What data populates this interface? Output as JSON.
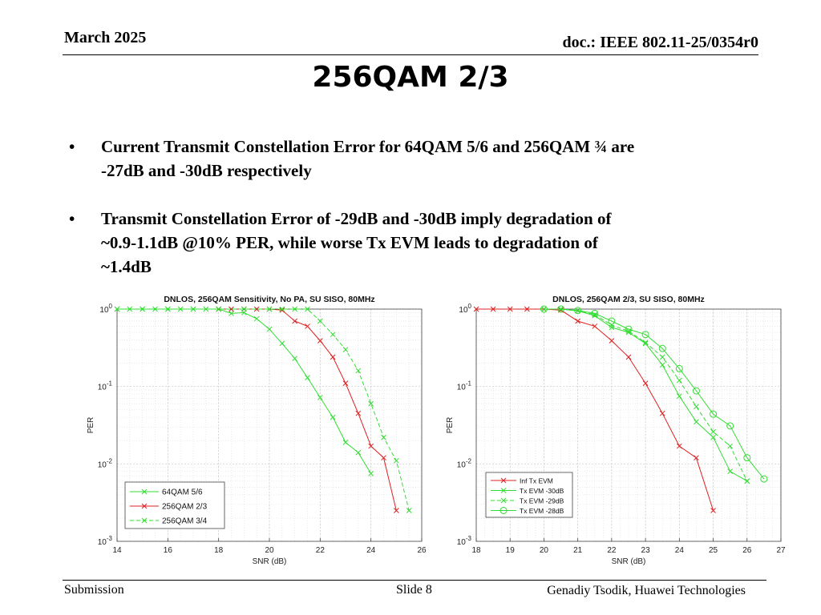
{
  "header": {
    "date": "March 2025",
    "doc": "doc.: IEEE 802.11-25/0354r0"
  },
  "slide_title": "256QAM 2/3",
  "bullets": [
    {
      "line1": "Current Transmit Constellation Error for 64QAM 5/6 and 256QAM ¾ are",
      "line2": "-27dB and -30dB respectively"
    },
    {
      "line1": "Transmit Constellation Error of -29dB and -30dB imply degradation of",
      "line2": "~0.9-1.1dB @10% PER, while worse Tx EVM leads to degradation of",
      "line3": "~1.4dB"
    }
  ],
  "bullet_glyph": "•",
  "footer": {
    "left": "Submission",
    "center": "Slide 8",
    "right": "Genadiy Tsodik, Huawei Technologies"
  },
  "chart_data": [
    {
      "type": "line",
      "title": "DNLOS, 256QAM Sensitivity, No PA, SU SISO, 80MHz",
      "xlabel": "SNR (dB)",
      "ylabel": "PER",
      "xlim": [
        14,
        26
      ],
      "ylim": [
        0.001,
        1
      ],
      "yscale": "log",
      "xticks": [
        14,
        16,
        18,
        20,
        22,
        24,
        26
      ],
      "yticks": [
        {
          "base": "10",
          "exp": "0"
        },
        {
          "base": "10",
          "exp": "-1"
        },
        {
          "base": "10",
          "exp": "-2"
        },
        {
          "base": "10",
          "exp": "-3"
        }
      ],
      "grid": true,
      "legend_position": "bottom-left",
      "series": [
        {
          "name": "64QAM 5/6",
          "color": "#33dd33",
          "dash": "solid",
          "x": [
            14,
            14.5,
            15,
            15.5,
            16,
            16.5,
            17,
            17.5,
            18,
            18.5,
            19,
            19.5,
            20,
            20.5,
            21,
            21.5,
            22,
            22.5,
            23,
            23.5,
            24
          ],
          "y": [
            1,
            1,
            1,
            1,
            1,
            1,
            1,
            1,
            1,
            0.88,
            0.9,
            0.75,
            0.55,
            0.36,
            0.23,
            0.13,
            0.072,
            0.04,
            0.019,
            0.014,
            0.0075
          ]
        },
        {
          "name": "256QAM 2/3",
          "color": "#e02020",
          "dash": "solid",
          "x": [
            18,
            18.5,
            19,
            19.5,
            20,
            20.5,
            21,
            21.5,
            22,
            22.5,
            23,
            23.5,
            24,
            24.5,
            25
          ],
          "y": [
            1,
            1,
            1,
            1,
            1,
            0.97,
            0.7,
            0.6,
            0.39,
            0.24,
            0.11,
            0.045,
            0.017,
            0.012,
            0.0025
          ]
        },
        {
          "name": "256QAM 3/4",
          "color": "#33dd33",
          "dash": "dashed",
          "x": [
            14,
            15,
            16,
            17,
            18,
            19,
            20,
            20.5,
            21,
            21.5,
            22,
            22.5,
            23,
            23.5,
            24,
            24.5,
            25,
            25.5
          ],
          "y": [
            1,
            1,
            1,
            1,
            1,
            1,
            1,
            1,
            1,
            1,
            0.7,
            0.47,
            0.3,
            0.16,
            0.06,
            0.022,
            0.011,
            0.0025
          ]
        }
      ]
    },
    {
      "type": "line",
      "title": "DNLOS, 256QAM 2/3, SU SISO, 80MHz",
      "xlabel": "SNR (dB)",
      "ylabel": "PER",
      "xlim": [
        18,
        27
      ],
      "ylim": [
        0.001,
        1
      ],
      "yscale": "log",
      "xticks": [
        18,
        19,
        20,
        21,
        22,
        23,
        24,
        25,
        26,
        27
      ],
      "yticks": [
        {
          "base": "10",
          "exp": "0"
        },
        {
          "base": "10",
          "exp": "-1"
        },
        {
          "base": "10",
          "exp": "-2"
        },
        {
          "base": "10",
          "exp": "-3"
        }
      ],
      "grid": true,
      "legend_position": "bottom-left",
      "series": [
        {
          "name": "Inf Tx EVM",
          "color": "#e02020",
          "dash": "solid",
          "marker": "x",
          "x": [
            18,
            18.5,
            19,
            19.5,
            20,
            20.5,
            21,
            21.5,
            22,
            22.5,
            23,
            23.5,
            24,
            24.5,
            25
          ],
          "y": [
            1,
            1,
            1,
            1,
            1,
            0.97,
            0.7,
            0.6,
            0.39,
            0.24,
            0.11,
            0.045,
            0.017,
            0.012,
            0.0025
          ]
        },
        {
          "name": "Tx EVM -30dB",
          "color": "#33dd33",
          "dash": "solid",
          "marker": "x",
          "x": [
            20,
            20.5,
            21,
            21.5,
            22,
            22.5,
            23,
            23.5,
            24,
            24.5,
            25,
            25.5,
            26
          ],
          "y": [
            1,
            1,
            0.95,
            0.82,
            0.58,
            0.5,
            0.36,
            0.19,
            0.075,
            0.035,
            0.022,
            0.008,
            0.006
          ]
        },
        {
          "name": "Tx EVM -29dB",
          "color": "#33dd33",
          "dash": "dashed",
          "marker": "x",
          "x": [
            20,
            20.5,
            21,
            21.5,
            22,
            22.5,
            23,
            23.5,
            24,
            24.5,
            25,
            25.5,
            26
          ],
          "y": [
            1,
            1,
            0.95,
            0.85,
            0.62,
            0.52,
            0.37,
            0.24,
            0.12,
            0.055,
            0.026,
            0.017,
            0.006
          ]
        },
        {
          "name": "Tx EVM -28dB",
          "color": "#33dd33",
          "dash": "solid",
          "marker": "o",
          "x": [
            20,
            20.5,
            21,
            21.5,
            22,
            22.5,
            23,
            23.5,
            24,
            24.5,
            25,
            25.5,
            26,
            26.5
          ],
          "y": [
            1,
            1,
            0.96,
            0.88,
            0.7,
            0.55,
            0.47,
            0.31,
            0.17,
            0.088,
            0.044,
            0.031,
            0.012,
            0.0064
          ]
        }
      ]
    }
  ]
}
